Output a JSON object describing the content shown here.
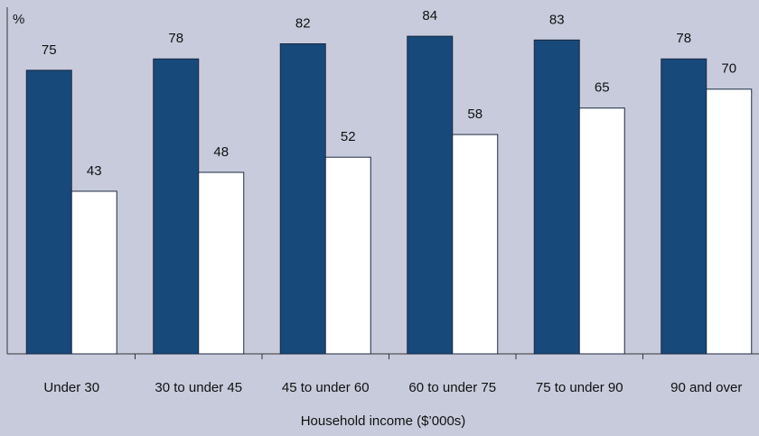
{
  "chart_data": {
    "type": "bar",
    "y_label": "%",
    "x_label": "Household income ($’000s)",
    "categories": [
      "Under 30",
      "30 to under 45",
      "45 to under 60",
      "60 to under 75",
      "75 to under 90",
      "90 and over"
    ],
    "series": [
      {
        "color": "#17497a",
        "values": [
          75,
          78,
          82,
          84,
          83,
          78
        ]
      },
      {
        "color": "#ffffff",
        "values": [
          43,
          48,
          52,
          58,
          65,
          70
        ]
      }
    ],
    "ylim": [
      0,
      90
    ]
  }
}
